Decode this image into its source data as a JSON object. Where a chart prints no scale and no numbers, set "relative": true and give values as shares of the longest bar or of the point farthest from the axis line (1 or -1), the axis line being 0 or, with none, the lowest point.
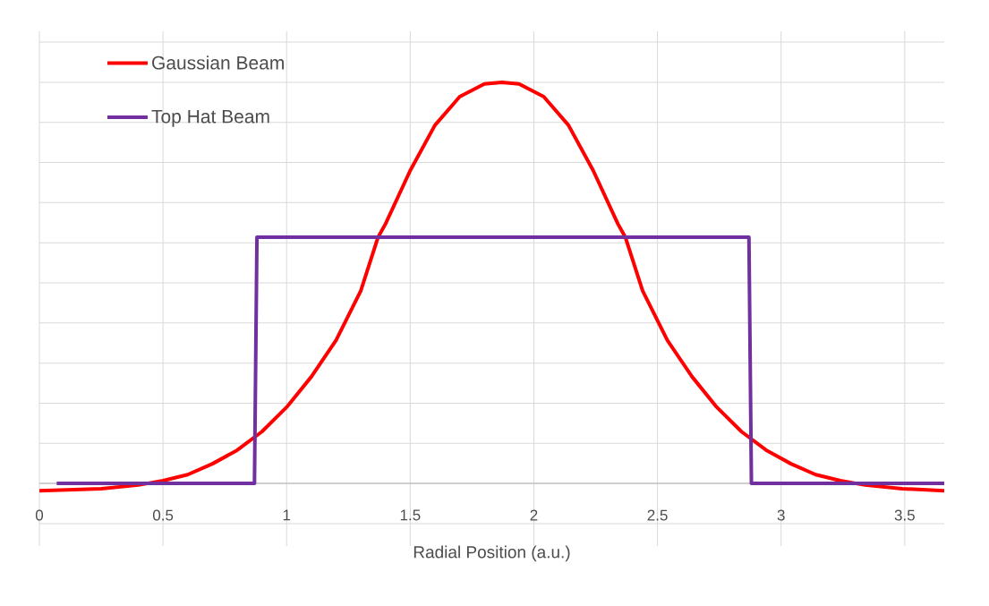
{
  "chart_data": {
    "type": "line",
    "relative": true,
    "xlabel": "Radial Position (a.u.)",
    "xlim": [
      0,
      3.66
    ],
    "xticks": [
      0,
      0.5,
      1,
      1.5,
      2,
      2.5,
      3,
      3.5
    ],
    "tick_labels": "x",
    "grid": true,
    "legend": "top left",
    "marker": "none",
    "line_style": "solid",
    "series": [
      {
        "name": "Gaussian Beam",
        "color": "#ff0000",
        "x": [
          0,
          0.25,
          0.4,
          0.5,
          0.6,
          0.7,
          0.8,
          0.9,
          1.0,
          1.1,
          1.2,
          1.3,
          1.37,
          1.4,
          1.5,
          1.6,
          1.7,
          1.8,
          1.87,
          1.94,
          2.04,
          2.14,
          2.24,
          2.34,
          2.37,
          2.44,
          2.54,
          2.64,
          2.74,
          2.84,
          2.94,
          3.04,
          3.14,
          3.24,
          3.34,
          3.49,
          3.66
        ],
        "values": [
          -0.018,
          -0.013,
          -0.004,
          0.007,
          0.022,
          0.049,
          0.083,
          0.129,
          0.19,
          0.266,
          0.357,
          0.48,
          0.614,
          0.647,
          0.78,
          0.893,
          0.964,
          0.996,
          1.0,
          0.996,
          0.964,
          0.893,
          0.78,
          0.647,
          0.614,
          0.48,
          0.357,
          0.266,
          0.19,
          0.129,
          0.083,
          0.049,
          0.022,
          0.007,
          -0.004,
          -0.013,
          -0.018
        ]
      },
      {
        "name": "Top Hat Beam",
        "color": "#7030a0",
        "x": [
          0.07,
          0.87,
          0.88,
          2.87,
          2.88,
          3.66
        ],
        "values": [
          0,
          0,
          0.614,
          0.614,
          0,
          0
        ]
      }
    ]
  }
}
